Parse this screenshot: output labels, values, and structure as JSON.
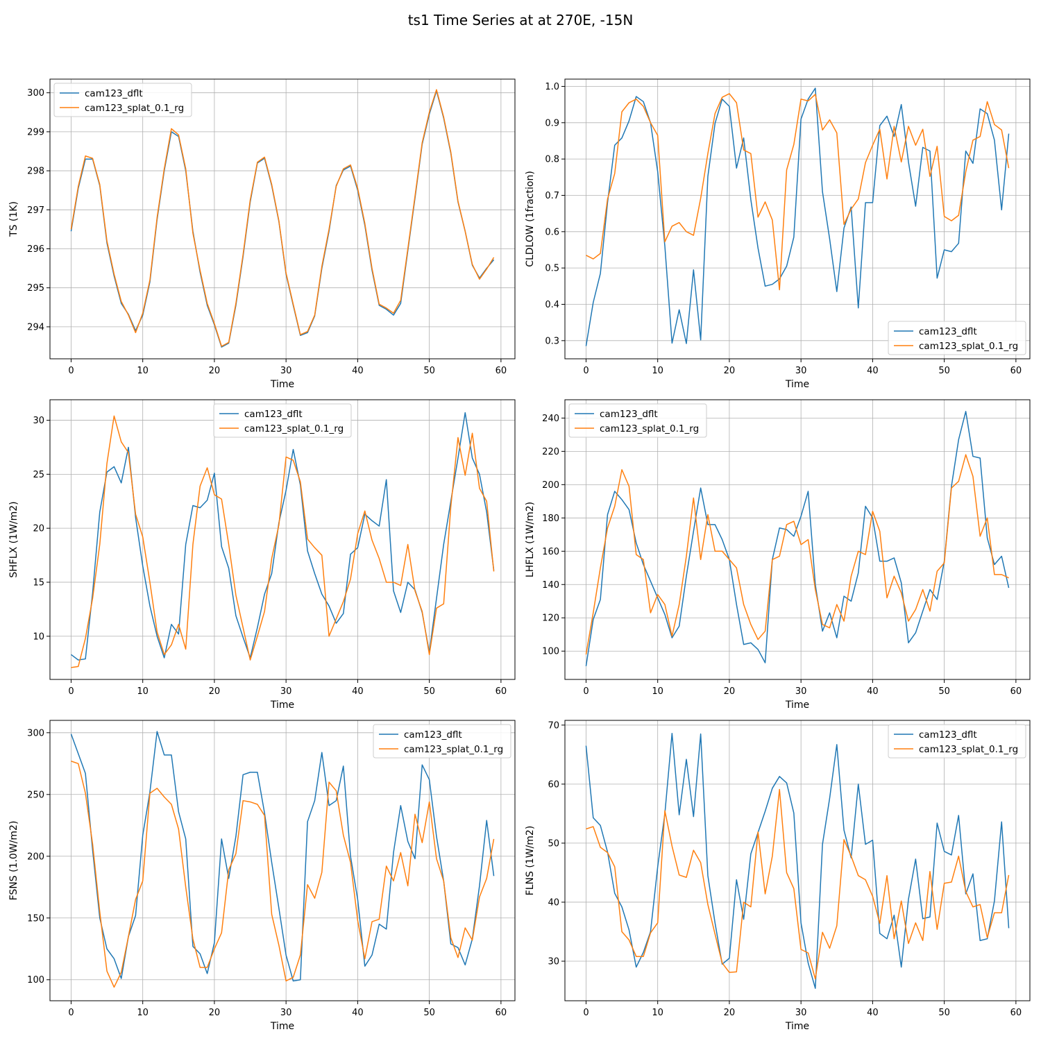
{
  "figure": {
    "title": "ts1 Time Series at at 270E, -15N"
  },
  "chart_data": [
    {
      "type": "line",
      "xlabel": "Time",
      "ylabel": "TS (1K)",
      "xlim": [
        -2.95,
        61.95
      ],
      "ylim": [
        293.18,
        300.35
      ],
      "xticks": [
        0,
        10,
        20,
        30,
        40,
        50,
        60
      ],
      "yticks": [
        294,
        295,
        296,
        297,
        298,
        299,
        300
      ],
      "grid": true,
      "legend": "upper left",
      "series": [
        {
          "name": "cam123_dflt",
          "color": "#1f77b4",
          "values": [
            296.45,
            297.55,
            298.3,
            298.3,
            297.62,
            296.15,
            295.3,
            294.6,
            294.32,
            293.9,
            294.3,
            295.15,
            296.75,
            298.0,
            299.0,
            298.88,
            298.0,
            296.45,
            295.4,
            294.55,
            294.05,
            293.48,
            293.58,
            294.55,
            295.8,
            297.2,
            298.2,
            298.32,
            297.62,
            296.7,
            295.35,
            294.55,
            293.78,
            293.85,
            294.28,
            295.5,
            296.45,
            297.62,
            298.02,
            298.12,
            297.5,
            296.6,
            295.45,
            294.55,
            294.45,
            294.3,
            294.6,
            295.95,
            297.3,
            298.68,
            299.45,
            300.05,
            299.35,
            298.45,
            297.2,
            296.45,
            295.58,
            295.25,
            295.5,
            295.72
          ]
        },
        {
          "name": "cam123_splat_0.1_rg",
          "color": "#ff7f0e",
          "values": [
            296.5,
            297.6,
            298.38,
            298.32,
            297.65,
            296.2,
            295.35,
            294.65,
            294.3,
            293.85,
            294.35,
            295.2,
            296.8,
            298.05,
            299.08,
            298.92,
            298.05,
            296.4,
            295.45,
            294.6,
            294.08,
            293.5,
            293.6,
            294.6,
            295.85,
            297.25,
            298.22,
            298.35,
            297.65,
            296.72,
            295.38,
            294.58,
            293.8,
            293.88,
            294.3,
            295.55,
            296.5,
            297.6,
            298.05,
            298.15,
            297.55,
            296.65,
            295.5,
            294.58,
            294.48,
            294.35,
            294.68,
            296.0,
            297.35,
            298.72,
            299.5,
            300.08,
            299.38,
            298.48,
            297.22,
            296.45,
            295.6,
            295.22,
            295.48,
            295.78
          ]
        }
      ]
    },
    {
      "type": "line",
      "xlabel": "Time",
      "ylabel": "CLDLOW (1fraction)",
      "xlim": [
        -2.95,
        61.95
      ],
      "ylim": [
        0.25,
        1.02
      ],
      "xticks": [
        0,
        10,
        20,
        30,
        40,
        50,
        60
      ],
      "yticks": [
        0.3,
        0.4,
        0.5,
        0.6,
        0.7,
        0.8,
        0.9,
        1.0
      ],
      "grid": true,
      "legend": "lower right",
      "series": [
        {
          "name": "cam123_dflt",
          "color": "#1f77b4",
          "values": [
            0.285,
            0.405,
            0.485,
            0.68,
            0.838,
            0.858,
            0.905,
            0.972,
            0.958,
            0.9,
            0.765,
            0.56,
            0.293,
            0.385,
            0.292,
            0.495,
            0.302,
            0.752,
            0.898,
            0.965,
            0.945,
            0.775,
            0.858,
            0.688,
            0.555,
            0.45,
            0.455,
            0.47,
            0.505,
            0.585,
            0.91,
            0.965,
            0.995,
            0.71,
            0.58,
            0.435,
            0.61,
            0.668,
            0.39,
            0.68,
            0.68,
            0.892,
            0.918,
            0.862,
            0.95,
            0.792,
            0.67,
            0.832,
            0.822,
            0.472,
            0.55,
            0.545,
            0.568,
            0.822,
            0.788,
            0.938,
            0.925,
            0.852,
            0.66,
            0.87
          ]
        },
        {
          "name": "cam123_splat_0.1_rg",
          "color": "#ff7f0e",
          "values": [
            0.535,
            0.525,
            0.54,
            0.69,
            0.76,
            0.93,
            0.955,
            0.965,
            0.945,
            0.9,
            0.865,
            0.572,
            0.615,
            0.625,
            0.6,
            0.59,
            0.692,
            0.815,
            0.925,
            0.97,
            0.98,
            0.955,
            0.825,
            0.815,
            0.64,
            0.682,
            0.632,
            0.44,
            0.77,
            0.84,
            0.965,
            0.96,
            0.978,
            0.88,
            0.908,
            0.872,
            0.62,
            0.662,
            0.69,
            0.79,
            0.838,
            0.882,
            0.745,
            0.89,
            0.792,
            0.89,
            0.838,
            0.882,
            0.752,
            0.835,
            0.642,
            0.63,
            0.645,
            0.765,
            0.852,
            0.862,
            0.958,
            0.895,
            0.88,
            0.775
          ]
        }
      ]
    },
    {
      "type": "line",
      "xlabel": "Time",
      "ylabel": "SHFLX (1W/m2)",
      "xlim": [
        -2.95,
        61.95
      ],
      "ylim": [
        6.0,
        31.9
      ],
      "xticks": [
        0,
        10,
        20,
        30,
        40,
        50,
        60
      ],
      "yticks": [
        10,
        15,
        20,
        25,
        30
      ],
      "grid": true,
      "legend": "upper center",
      "series": [
        {
          "name": "cam123_dflt",
          "color": "#1f77b4",
          "values": [
            8.3,
            7.8,
            7.9,
            14.0,
            21.5,
            25.2,
            25.7,
            24.2,
            27.5,
            21.0,
            16.5,
            12.8,
            10.0,
            8.0,
            11.1,
            10.2,
            18.5,
            22.1,
            21.9,
            22.6,
            25.1,
            18.3,
            16.3,
            11.9,
            9.9,
            8.0,
            10.8,
            13.9,
            15.8,
            20.5,
            23.5,
            27.3,
            24.0,
            17.9,
            15.8,
            13.9,
            12.8,
            11.2,
            12.1,
            17.6,
            18.2,
            21.3,
            20.7,
            20.2,
            24.5,
            14.2,
            12.2,
            15.0,
            14.3,
            12.2,
            8.5,
            13.5,
            18.5,
            22.5,
            26.5,
            30.7,
            26.5,
            25.0,
            21.5,
            16.1
          ]
        },
        {
          "name": "cam123_splat_0.1_rg",
          "color": "#ff7f0e",
          "values": [
            7.1,
            7.2,
            9.8,
            13.5,
            18.5,
            26.0,
            30.4,
            28.0,
            27.0,
            21.3,
            19.2,
            15.0,
            10.4,
            8.3,
            9.2,
            11.1,
            8.8,
            18.5,
            23.9,
            25.6,
            23.1,
            22.7,
            18.5,
            13.8,
            10.8,
            7.8,
            10.0,
            12.3,
            17.2,
            20.3,
            26.6,
            26.3,
            24.3,
            19.0,
            18.2,
            17.5,
            10.0,
            11.6,
            13.2,
            15.3,
            19.5,
            21.6,
            18.9,
            17.2,
            15.0,
            15.0,
            14.7,
            18.5,
            14.2,
            12.3,
            8.3,
            12.6,
            13.0,
            22.0,
            28.4,
            24.9,
            28.8,
            23.7,
            22.5,
            16.0
          ]
        }
      ]
    },
    {
      "type": "line",
      "xlabel": "Time",
      "ylabel": "LHFLX (1W/m2)",
      "xlim": [
        -2.95,
        61.95
      ],
      "ylim": [
        83.0,
        251.0
      ],
      "xticks": [
        0,
        10,
        20,
        30,
        40,
        50,
        60
      ],
      "yticks": [
        100,
        120,
        140,
        160,
        180,
        200,
        220,
        240
      ],
      "grid": true,
      "legend": "upper left",
      "series": [
        {
          "name": "cam123_dflt",
          "color": "#1f77b4",
          "values": [
            91,
            119,
            131,
            182,
            196,
            191,
            185,
            165,
            152,
            142,
            132,
            122,
            108,
            115,
            145,
            172,
            198,
            176,
            176,
            167,
            155,
            128,
            104,
            105,
            101,
            93,
            155,
            174,
            173,
            169,
            181,
            196,
            140,
            112,
            123,
            108,
            133,
            130,
            147,
            187,
            180,
            154,
            154,
            156,
            141,
            105,
            111,
            124,
            137,
            131,
            154,
            199,
            227,
            244,
            217,
            216,
            168,
            152,
            157,
            138
          ]
        },
        {
          "name": "cam123_splat_0.1_rg",
          "color": "#ff7f0e",
          "values": [
            98,
            123,
            150,
            174,
            187,
            209,
            199,
            158,
            155,
            123,
            134,
            128,
            109,
            128,
            157,
            192,
            155,
            182,
            160,
            160,
            155,
            150,
            128,
            116,
            107,
            112,
            155,
            157,
            176,
            178,
            164,
            167,
            137,
            116,
            114,
            128,
            118,
            145,
            160,
            158,
            184,
            172,
            132,
            145,
            135,
            118,
            125,
            137,
            124,
            148,
            153,
            198,
            202,
            218,
            205,
            169,
            180,
            146,
            146,
            144
          ]
        }
      ]
    },
    {
      "type": "line",
      "xlabel": "Time",
      "ylabel": "FSNS (1.0W/m2)",
      "xlim": [
        -2.95,
        61.95
      ],
      "ylim": [
        83.0,
        310.0
      ],
      "xticks": [
        0,
        10,
        20,
        30,
        40,
        50,
        60
      ],
      "yticks": [
        100,
        150,
        200,
        250,
        300
      ],
      "grid": true,
      "legend": "upper right",
      "series": [
        {
          "name": "cam123_dflt",
          "color": "#1f77b4",
          "values": [
            299,
            283,
            267,
            205,
            150,
            125,
            117,
            101,
            135,
            152,
            217,
            252,
            301,
            282,
            282,
            236,
            214,
            127,
            121,
            105,
            130,
            214,
            182,
            216,
            266,
            268,
            268,
            235,
            195,
            158,
            120,
            99,
            100,
            228,
            245,
            284,
            241,
            245,
            273,
            200,
            165,
            111,
            120,
            145,
            141,
            203,
            241,
            212,
            198,
            274,
            262,
            216,
            180,
            129,
            126,
            112,
            133,
            176,
            229,
            184
          ]
        },
        {
          "name": "cam123_splat_0.1_rg",
          "color": "#ff7f0e",
          "values": [
            277,
            275,
            251,
            210,
            155,
            107,
            94,
            106,
            135,
            165,
            180,
            251,
            255,
            248,
            242,
            222,
            175,
            133,
            110,
            110,
            125,
            138,
            189,
            202,
            245,
            244,
            242,
            233,
            153,
            128,
            99,
            102,
            120,
            177,
            166,
            187,
            260,
            253,
            217,
            195,
            148,
            117,
            147,
            149,
            192,
            180,
            203,
            176,
            234,
            211,
            244,
            198,
            180,
            134,
            118,
            142,
            132,
            167,
            182,
            214
          ]
        }
      ]
    },
    {
      "type": "line",
      "xlabel": "Time",
      "ylabel": "FLNS (1W/m2)",
      "xlim": [
        -2.95,
        61.95
      ],
      "ylim": [
        23.3,
        70.8
      ],
      "xticks": [
        0,
        10,
        20,
        30,
        40,
        50,
        60
      ],
      "yticks": [
        30,
        40,
        50,
        60,
        70
      ],
      "grid": true,
      "legend": "upper right",
      "series": [
        {
          "name": "cam123_dflt",
          "color": "#1f77b4",
          "values": [
            66.5,
            54.3,
            53.0,
            48.5,
            41.5,
            39.2,
            35.3,
            29.0,
            31.5,
            35.0,
            46.0,
            55.0,
            68.6,
            54.8,
            64.2,
            54.5,
            68.5,
            44.5,
            36.5,
            29.5,
            30.5,
            43.8,
            37.1,
            48.2,
            51.8,
            55.4,
            59.3,
            61.3,
            60.2,
            55.1,
            36.5,
            29.7,
            25.4,
            49.8,
            57.6,
            66.7,
            52.2,
            47.5,
            60.0,
            49.8,
            50.5,
            34.7,
            33.8,
            37.8,
            29.0,
            40.5,
            47.3,
            37.2,
            37.5,
            53.4,
            48.6,
            48.0,
            54.7,
            41.4,
            44.8,
            33.5,
            33.8,
            40.2,
            53.6,
            35.6
          ]
        },
        {
          "name": "cam123_splat_0.1_rg",
          "color": "#ff7f0e",
          "values": [
            52.4,
            52.8,
            49.3,
            48.4,
            46.0,
            35.0,
            33.6,
            30.8,
            30.8,
            34.8,
            36.5,
            55.5,
            49.5,
            44.6,
            44.2,
            48.8,
            46.7,
            39.6,
            34.6,
            29.7,
            28.1,
            28.2,
            40.0,
            39.2,
            51.9,
            41.4,
            47.8,
            59.1,
            45.0,
            42.3,
            32.0,
            31.4,
            27.0,
            34.9,
            32.2,
            36.0,
            50.6,
            47.8,
            44.5,
            43.8,
            41.0,
            36.4,
            44.5,
            33.8,
            40.2,
            33.0,
            36.5,
            33.5,
            45.2,
            35.4,
            43.2,
            43.4,
            47.8,
            41.8,
            39.2,
            39.6,
            34.0,
            38.2,
            38.2,
            44.6
          ]
        }
      ]
    }
  ]
}
